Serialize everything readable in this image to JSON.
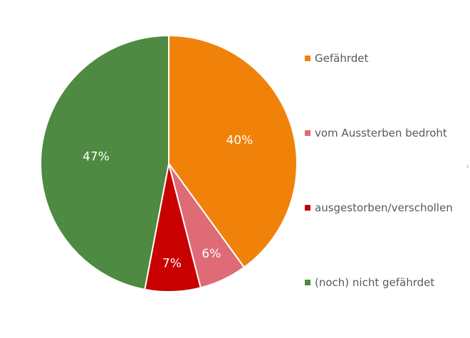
{
  "chart_data": {
    "type": "pie",
    "title": "",
    "categories": [
      "Gefährdet",
      "vom Aussterben bedroht",
      "ausgestorben/verschollen",
      "(noch) nicht gefährdet"
    ],
    "values": [
      40,
      6,
      7,
      47
    ],
    "value_labels": [
      "40%",
      "6%",
      "7%",
      "47%"
    ],
    "colors": [
      "#F0820A",
      "#DE6B75",
      "#C80000",
      "#4E8A41"
    ],
    "start_angle": "12 o'clock",
    "direction": "clockwise",
    "legend_position": "right"
  }
}
